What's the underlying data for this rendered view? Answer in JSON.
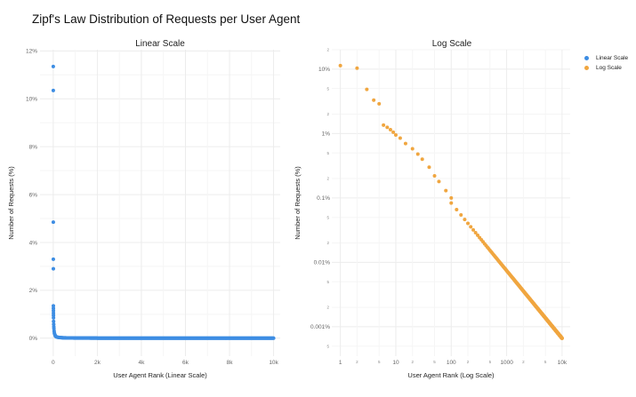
{
  "page_title": "Zipf's Law Distribution of Requests per User Agent",
  "colors": {
    "linear": "#3d8de3",
    "log": "#f0a640",
    "grid": "#ececec"
  },
  "chart_data": [
    {
      "type": "scatter",
      "title": "Linear Scale",
      "xlabel": "User Agent Rank (Linear Scale)",
      "ylabel": "Number of Requests (%)",
      "xlim": [
        -600,
        10300
      ],
      "ylim": [
        -0.75,
        12.05
      ],
      "x_ticks": [
        0,
        2000,
        4000,
        6000,
        8000,
        10000
      ],
      "x_tick_labels": [
        "0",
        "2k",
        "4k",
        "6k",
        "8k",
        "10k"
      ],
      "y_ticks": [
        0,
        2,
        4,
        6,
        8,
        10,
        12
      ],
      "y_tick_labels": [
        "0%",
        "2%",
        "4%",
        "6%",
        "8%",
        "10%",
        "12%"
      ],
      "grid": true,
      "head_points": {
        "x": [
          1,
          2,
          3,
          4,
          5,
          6,
          7,
          8,
          9,
          10,
          12,
          15,
          20,
          25,
          30,
          40,
          50,
          60,
          80,
          100
        ],
        "y": [
          11.35,
          10.35,
          4.85,
          3.3,
          2.9,
          1.35,
          1.25,
          1.15,
          1.05,
          0.95,
          0.85,
          0.7,
          0.58,
          0.48,
          0.4,
          0.3,
          0.22,
          0.18,
          0.13,
          0.1
        ]
      },
      "tail_rule": "y = 10.5 * x^-1.05 for ranks 100–10000",
      "n_points": 10000
    },
    {
      "type": "scatter",
      "title": "Log Scale",
      "xlabel": "User Agent Rank (Log Scale)",
      "ylabel": "Number of Requests (%)",
      "x_scale": "log",
      "y_scale": "log",
      "xlim": [
        0.7,
        14000
      ],
      "ylim": [
        0.00035,
        20
      ],
      "x_major_ticks": [
        1,
        10,
        100,
        1000,
        10000
      ],
      "x_major_labels": [
        "1",
        "10",
        "100",
        "1000",
        "10k"
      ],
      "x_minor_ticks": [
        2,
        5,
        20,
        50,
        200,
        500,
        2000,
        5000
      ],
      "x_minor_labels": [
        "2",
        "5",
        "2",
        "5",
        "2",
        "5",
        "2",
        "5"
      ],
      "y_major_ticks": [
        0.001,
        0.01,
        0.1,
        1,
        10
      ],
      "y_major_labels": [
        "0.001%",
        "0.01%",
        "0.1%",
        "1%",
        "10%"
      ],
      "y_minor_ticks": [
        0.0005,
        0.002,
        0.005,
        0.02,
        0.05,
        0.2,
        0.5,
        2,
        5,
        20
      ],
      "y_minor_labels": [
        "5",
        "2",
        "5",
        "2",
        "5",
        "2",
        "5",
        "2",
        "5",
        "2"
      ],
      "grid": true,
      "head_points": {
        "x": [
          1,
          2,
          3,
          4,
          5,
          6,
          7,
          8,
          9,
          10,
          12,
          15,
          20,
          25,
          30,
          40,
          50,
          60,
          80,
          100
        ],
        "y": [
          11.35,
          10.35,
          4.85,
          3.3,
          2.9,
          1.35,
          1.25,
          1.15,
          1.05,
          0.95,
          0.85,
          0.7,
          0.58,
          0.48,
          0.4,
          0.3,
          0.22,
          0.18,
          0.13,
          0.1
        ]
      },
      "tail_rule": "y = 10.5 * x^-1.05 for ranks 100–10000",
      "n_points": 10000
    }
  ],
  "legend": [
    {
      "label": "Linear Scale",
      "color": "#3d8de3"
    },
    {
      "label": "Log Scale",
      "color": "#f0a640"
    }
  ]
}
